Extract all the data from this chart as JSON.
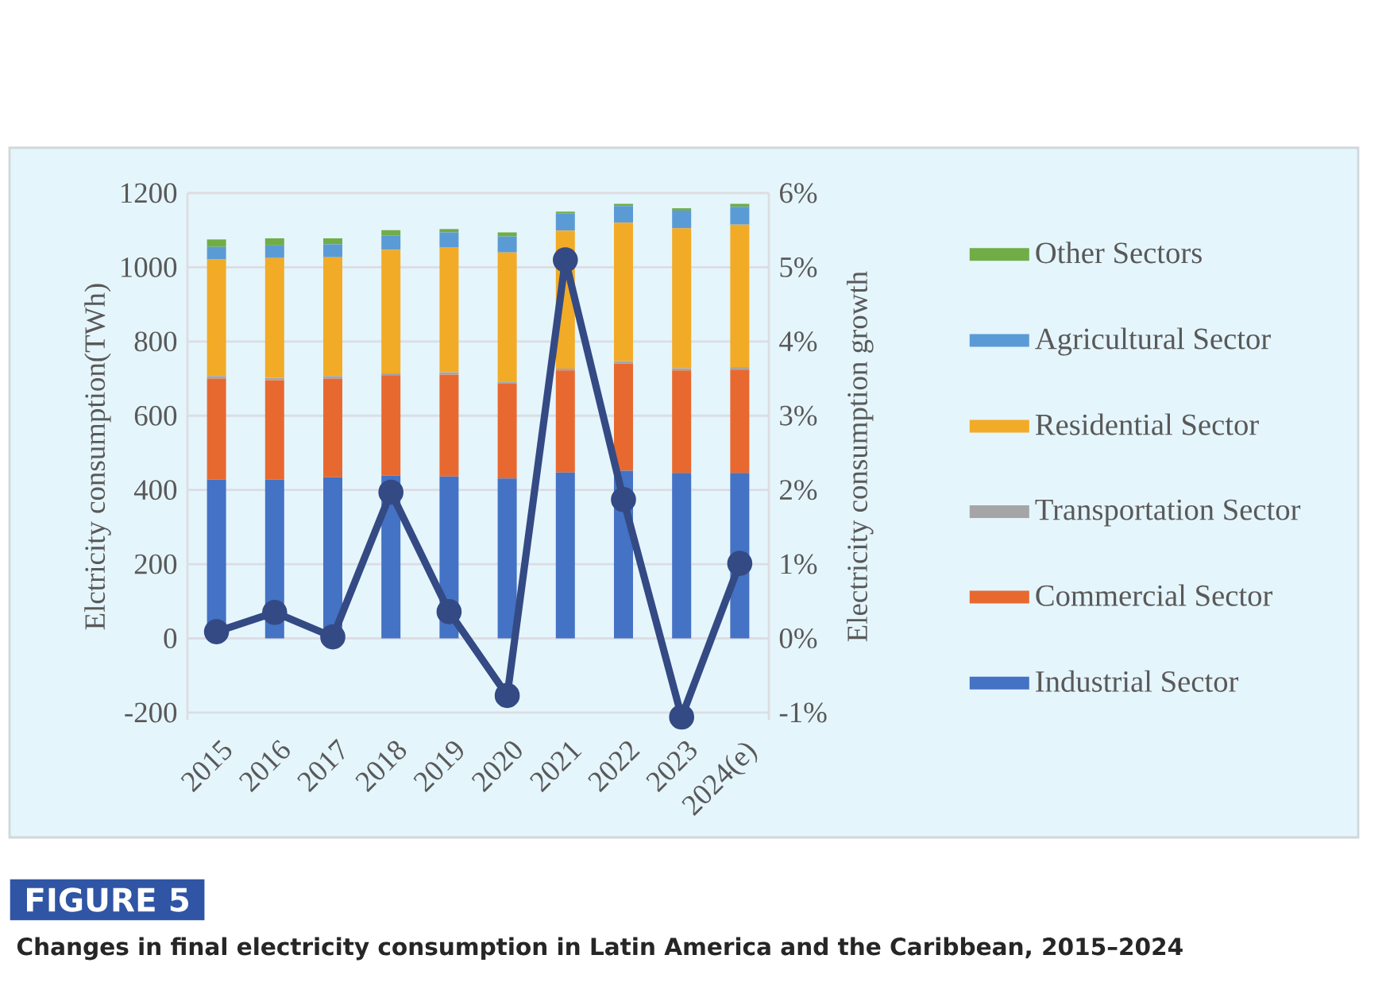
{
  "chart_data": {
    "type": "bar",
    "title": "Changes in final electricity consumption in Latin America and the Caribbean, 2015–2024",
    "annotations": [
      "FIGURE 5"
    ],
    "ylabel": "Elctricity consumption(TWh)",
    "y2label": "Electricity consumption growth",
    "categories": [
      "2015",
      "2016",
      "2017",
      "2018",
      "2019",
      "2020",
      "2021",
      "2022",
      "2023",
      "2024(e)"
    ],
    "stacked": true,
    "grid": "y",
    "legend": "right",
    "marker": "circle",
    "ylim": [
      -220,
      1200
    ],
    "yticks": [
      -200,
      0,
      200,
      400,
      600,
      800,
      1000,
      1200
    ],
    "y2lim": [
      -1.1,
      6
    ],
    "y2ticks": [
      {
        "value": -1,
        "label": "-1%"
      },
      {
        "value": 0,
        "label": "0%"
      },
      {
        "value": 1,
        "label": "1%"
      },
      {
        "value": 2,
        "label": "2%"
      },
      {
        "value": 3,
        "label": "3%"
      },
      {
        "value": 4,
        "label": "4%"
      },
      {
        "value": 5,
        "label": "5%"
      },
      {
        "value": 6,
        "label": "6%"
      }
    ],
    "series": [
      {
        "name": "Industrial Sector",
        "color": "#4472c4",
        "values": [
          428,
          428,
          434,
          439,
          436,
          431,
          447,
          452,
          446,
          446
        ]
      },
      {
        "name": "Commercial Sector",
        "color": "#e8692f",
        "values": [
          272,
          268,
          266,
          270,
          275,
          255,
          275,
          289,
          276,
          278
        ]
      },
      {
        "name": "Transportation Sector",
        "color": "#a5a5a5",
        "values": [
          7,
          6,
          7,
          5,
          6,
          6,
          5,
          6,
          6,
          7
        ]
      },
      {
        "name": "Residential Sector",
        "color": "#f2ab26",
        "values": [
          314,
          323,
          320,
          333,
          336,
          348,
          372,
          373,
          377,
          384
        ]
      },
      {
        "name": "Agricultural Sector",
        "color": "#5b9bd5",
        "values": [
          34,
          34,
          35,
          38,
          41,
          43,
          46,
          45,
          48,
          48
        ]
      },
      {
        "name": "Other Sectors",
        "color": "#70ad47",
        "values": [
          20,
          19,
          16,
          15,
          9,
          11,
          5,
          6,
          6,
          8
        ]
      },
      {
        "type": "line",
        "axis": "y2",
        "color": "#344a84",
        "values": [
          0.09,
          0.35,
          0.02,
          1.97,
          0.36,
          -0.77,
          5.1,
          1.87,
          -1.06,
          1.01
        ]
      }
    ]
  }
}
